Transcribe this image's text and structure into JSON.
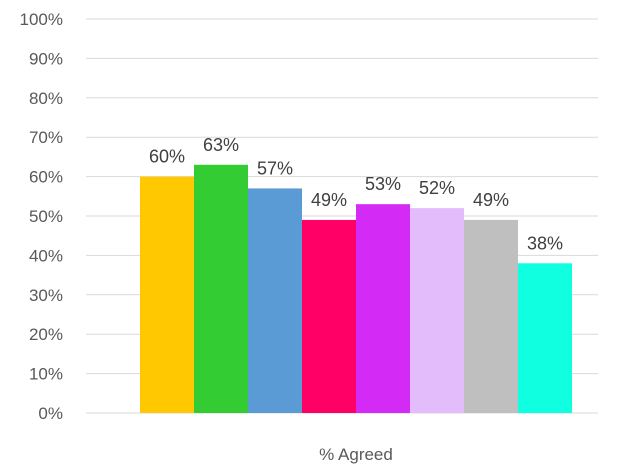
{
  "chart_data": {
    "type": "bar",
    "categories": [
      "% Agreed"
    ],
    "series": [
      {
        "values": [
          60
        ],
        "color": "#FFC800",
        "label": "60%"
      },
      {
        "values": [
          63
        ],
        "color": "#33CC33",
        "label": "63%"
      },
      {
        "values": [
          57
        ],
        "color": "#5B9BD5",
        "label": "57%"
      },
      {
        "values": [
          49
        ],
        "color": "#FF0066",
        "label": "49%"
      },
      {
        "values": [
          53
        ],
        "color": "#D42AF5",
        "label": "53%"
      },
      {
        "values": [
          52
        ],
        "color": "#E2BCFB",
        "label": "52%"
      },
      {
        "values": [
          49
        ],
        "color": "#BFBFBF",
        "label": "49%"
      },
      {
        "values": [
          38
        ],
        "color": "#0FFFE0",
        "label": "38%"
      }
    ],
    "ylim": [
      0,
      100
    ],
    "yticks": [
      "0%",
      "10%",
      "20%",
      "30%",
      "40%",
      "50%",
      "60%",
      "70%",
      "80%",
      "90%",
      "100%"
    ],
    "grid": true,
    "legend": "none"
  }
}
